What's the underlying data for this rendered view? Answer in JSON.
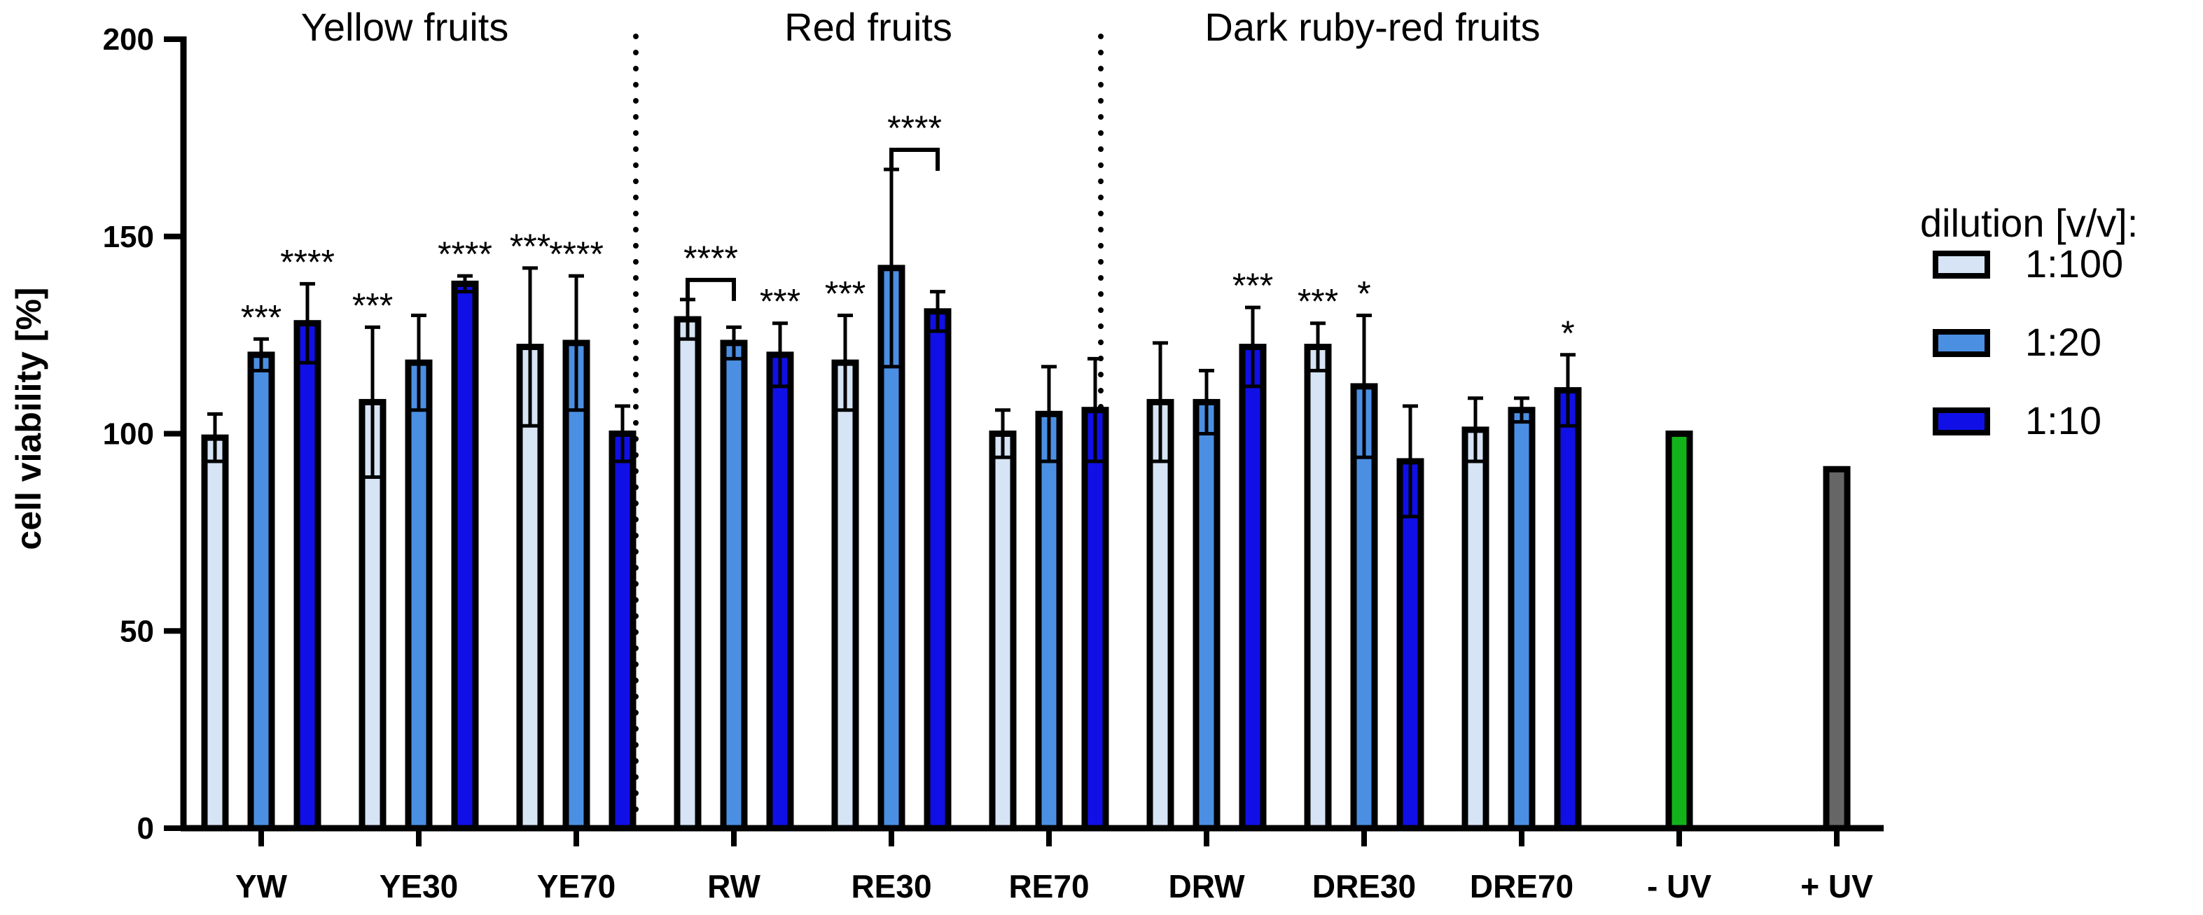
{
  "colors": {
    "light": "#d6e4f5",
    "mid": "#4b8fe3",
    "dark": "#1010e6",
    "minus_uv": "#13b21a",
    "plus_uv": "#666666",
    "outline": "#000000"
  },
  "chart_data": {
    "type": "bar",
    "title": "",
    "xlabel": "",
    "ylabel": "cell viability [%]",
    "ylim": [
      0,
      200
    ],
    "yticks": [
      0,
      50,
      100,
      150,
      200
    ],
    "ytick_labels": [
      "0",
      "50",
      "100",
      "150",
      "200"
    ],
    "categories": [
      "YW",
      "YE30",
      "YE70",
      "RW",
      "RE30",
      "RE70",
      "DRW",
      "DRE30",
      "DRE70",
      "- UV",
      "+ UV"
    ],
    "legend_title": "dilution [v/v]:",
    "legend_position": "right",
    "series": [
      {
        "name": "1:100",
        "values": [
          99,
          108,
          122,
          129,
          118,
          100,
          108,
          122,
          101,
          null,
          null
        ],
        "errors": [
          6,
          19,
          20,
          5,
          12,
          6,
          15,
          6,
          8,
          null,
          null
        ]
      },
      {
        "name": "1:20",
        "values": [
          120,
          118,
          123,
          123,
          142,
          105,
          108,
          112,
          106,
          null,
          null
        ],
        "errors": [
          4,
          12,
          17,
          4,
          25,
          12,
          8,
          18,
          3,
          null,
          null
        ]
      },
      {
        "name": "1:10",
        "values": [
          128,
          138,
          100,
          120,
          131,
          106,
          122,
          93,
          111,
          null,
          null
        ],
        "errors": [
          10,
          2,
          7,
          8,
          5,
          13,
          10,
          14,
          9,
          null,
          null
        ]
      }
    ],
    "controls": [
      {
        "name": "- UV",
        "value": 100
      },
      {
        "name": "+ UV",
        "value": 91
      }
    ],
    "group_titles": [
      "Yellow fruits",
      "Red fruits",
      "Dark ruby-red fruits"
    ],
    "significance": [
      {
        "category": "YW",
        "series": "1:20",
        "label": "***"
      },
      {
        "category": "YW",
        "series": "1:10",
        "label": "****"
      },
      {
        "category": "YE30",
        "series": "1:100",
        "label": "***"
      },
      {
        "category": "YE30",
        "series": "1:10",
        "label": "****"
      },
      {
        "category": "YE70",
        "series": "1:100",
        "label": "***"
      },
      {
        "category": "YE70",
        "series": "1:20",
        "label": "****"
      },
      {
        "category": "RW",
        "series": "1:100-1:20",
        "label": "****",
        "bracket": true
      },
      {
        "category": "RW",
        "series": "1:10",
        "label": "***"
      },
      {
        "category": "RE30",
        "series": "1:100",
        "label": "***"
      },
      {
        "category": "RE30",
        "series": "1:20-1:10",
        "label": "****",
        "bracket": true
      },
      {
        "category": "DRW",
        "series": "1:10",
        "label": "***"
      },
      {
        "category": "DRE30",
        "series": "1:100",
        "label": "***"
      },
      {
        "category": "DRE30",
        "series": "1:20",
        "label": "*"
      },
      {
        "category": "DRE70",
        "series": "1:10",
        "label": "*"
      }
    ]
  }
}
